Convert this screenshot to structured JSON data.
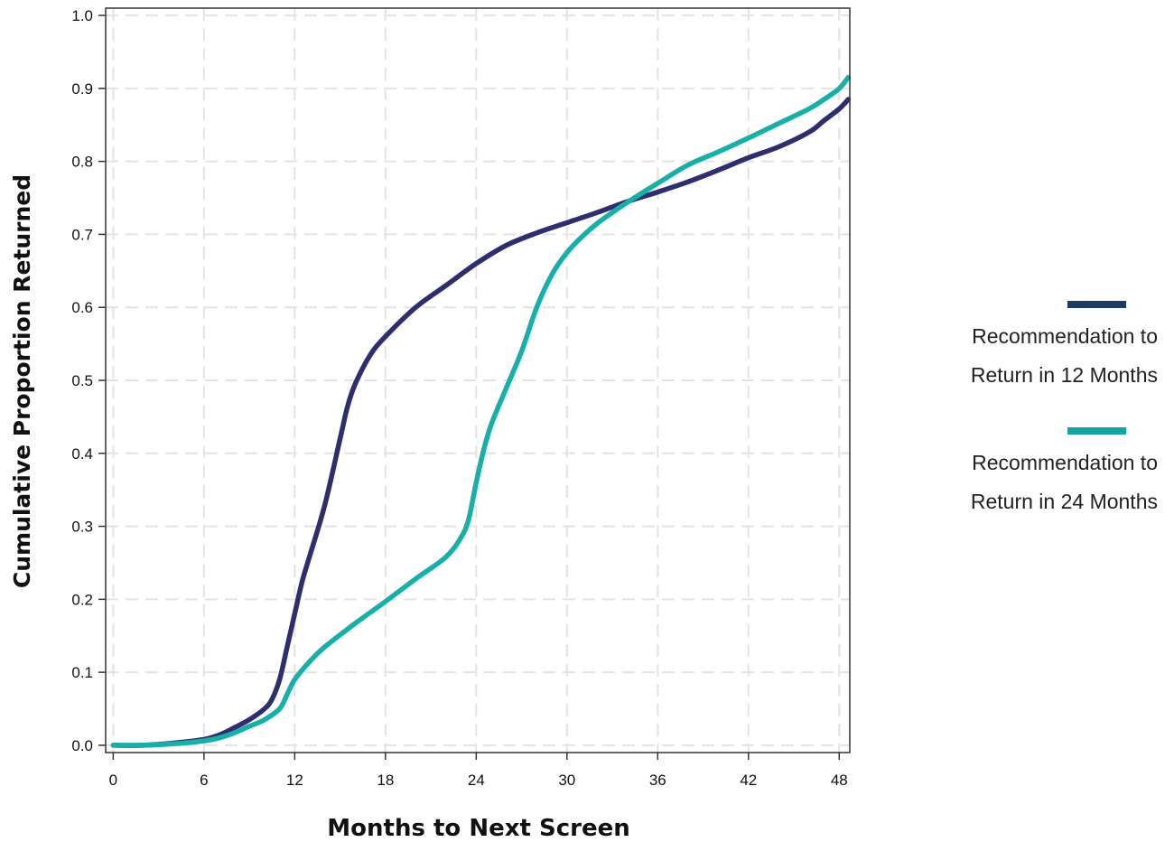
{
  "chart_data": {
    "type": "line",
    "xlabel": "Months to Next Screen",
    "ylabel": "Cumulative Proportion Returned",
    "xlim": [
      -0.5,
      48.7
    ],
    "ylim": [
      -0.01,
      1.01
    ],
    "xticks": [
      0,
      6,
      12,
      18,
      24,
      30,
      36,
      42,
      48
    ],
    "yticks": [
      0.0,
      0.1,
      0.2,
      0.3,
      0.4,
      0.5,
      0.6,
      0.7,
      0.8,
      0.9,
      1.0
    ],
    "grid": true,
    "legend_position": "right",
    "series": [
      {
        "name": "Recommendation to Return in 12 Months",
        "color": "#2e2d6e",
        "legend_color": "#1f3a5f",
        "x": [
          0,
          2,
          4,
          6,
          7,
          8,
          9,
          10,
          10.5,
          11,
          11.5,
          12,
          12.5,
          13,
          14,
          15,
          15.5,
          16,
          17,
          18,
          20,
          22,
          24,
          26,
          28,
          30,
          32,
          34,
          36,
          38,
          40,
          42,
          44,
          46,
          47,
          48,
          48.6
        ],
        "y": [
          0.0,
          0.0,
          0.003,
          0.008,
          0.014,
          0.024,
          0.035,
          0.05,
          0.063,
          0.09,
          0.135,
          0.18,
          0.225,
          0.26,
          0.33,
          0.42,
          0.465,
          0.495,
          0.535,
          0.56,
          0.6,
          0.63,
          0.66,
          0.685,
          0.702,
          0.716,
          0.73,
          0.745,
          0.758,
          0.772,
          0.788,
          0.805,
          0.82,
          0.84,
          0.856,
          0.872,
          0.885
        ]
      },
      {
        "name": "Recommendation to Return in 24 Months",
        "color": "#17b0a9",
        "legend_color": "#17a3a0",
        "x": [
          0,
          2,
          4,
          6,
          7,
          8,
          9,
          10,
          11,
          11.5,
          12,
          13,
          14,
          16,
          18,
          20,
          22,
          23,
          23.5,
          24,
          24.5,
          25,
          26,
          27,
          28,
          29,
          30,
          31,
          32,
          33,
          34,
          36,
          38,
          40,
          42,
          44,
          46,
          47,
          48,
          48.6
        ],
        "y": [
          0.0,
          0.0,
          0.002,
          0.006,
          0.01,
          0.017,
          0.026,
          0.035,
          0.05,
          0.07,
          0.09,
          0.115,
          0.135,
          0.167,
          0.197,
          0.228,
          0.258,
          0.285,
          0.31,
          0.36,
          0.405,
          0.44,
          0.49,
          0.54,
          0.6,
          0.645,
          0.675,
          0.697,
          0.715,
          0.73,
          0.744,
          0.77,
          0.795,
          0.813,
          0.832,
          0.852,
          0.872,
          0.885,
          0.9,
          0.915
        ]
      }
    ]
  }
}
